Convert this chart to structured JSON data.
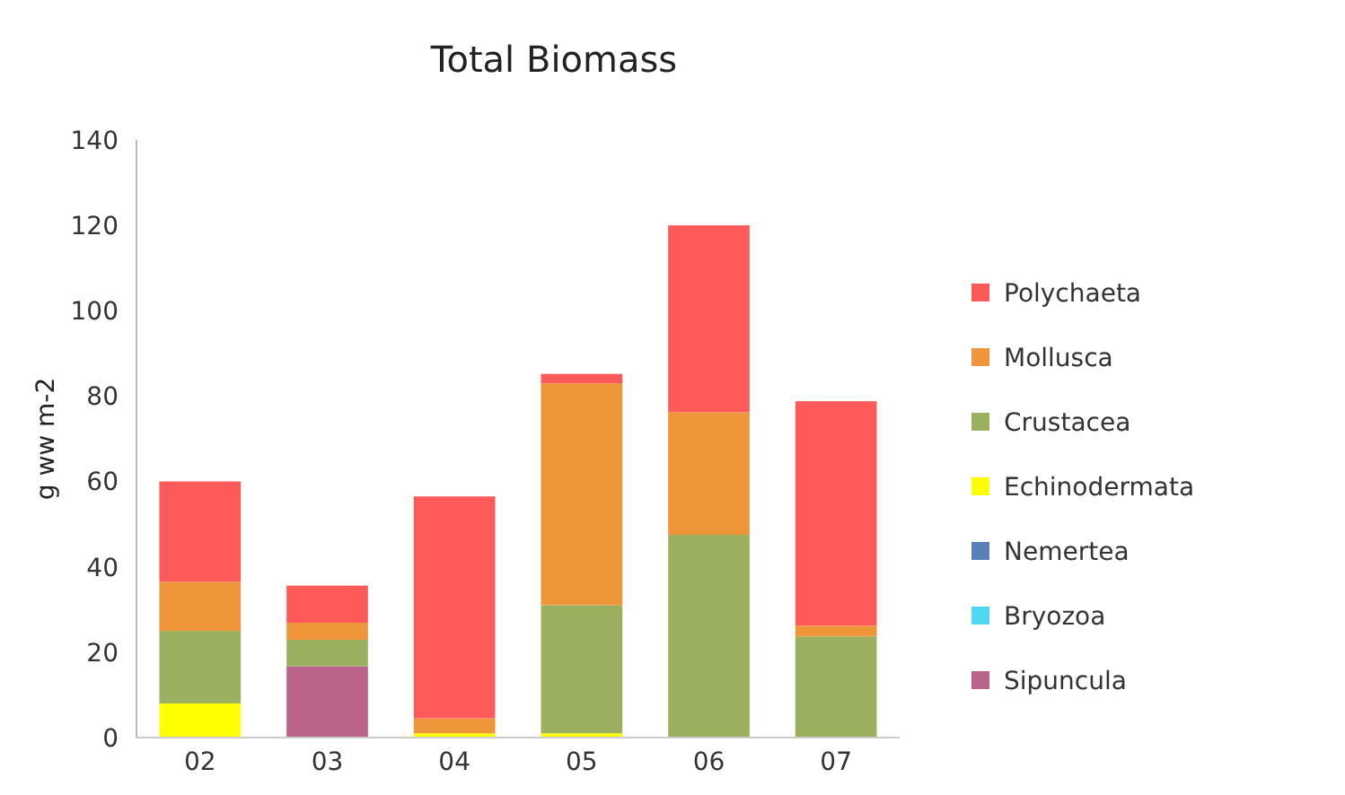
{
  "chart_data": {
    "type": "bar",
    "title": "Total Biomass",
    "ylabel": "g ww m-2",
    "stacked": true,
    "legend": "right",
    "grid": false,
    "categories": [
      "02",
      "03",
      "04",
      "05",
      "06",
      "07"
    ],
    "ylim": [
      0,
      140
    ],
    "yticks": [
      0,
      20,
      40,
      60,
      80,
      100,
      120,
      140
    ],
    "series": [
      {
        "name": "Sipuncula",
        "color": "#b96488",
        "values": [
          0,
          16.7,
          0,
          0,
          0,
          0
        ]
      },
      {
        "name": "Bryozoa",
        "color": "#4dd8f0",
        "values": [
          0,
          0,
          0,
          0,
          0,
          0
        ]
      },
      {
        "name": "Nemertea",
        "color": "#5b80b8",
        "values": [
          0,
          0,
          0,
          0,
          0,
          0
        ]
      },
      {
        "name": "Echinodermata",
        "color": "#ffff00",
        "values": [
          8,
          0,
          1,
          1,
          0,
          0
        ]
      },
      {
        "name": "Crustacea",
        "color": "#9bb05e",
        "values": [
          17,
          6.2,
          0,
          30,
          47.5,
          23.7
        ]
      },
      {
        "name": "Mollusca",
        "color": "#f0963a",
        "values": [
          11.5,
          4,
          3.5,
          52,
          28.7,
          2.5
        ]
      },
      {
        "name": "Polychaeta",
        "color": "#ff5a5a",
        "values": [
          23.5,
          8.7,
          52,
          2.2,
          43.8,
          52.6
        ]
      }
    ]
  }
}
